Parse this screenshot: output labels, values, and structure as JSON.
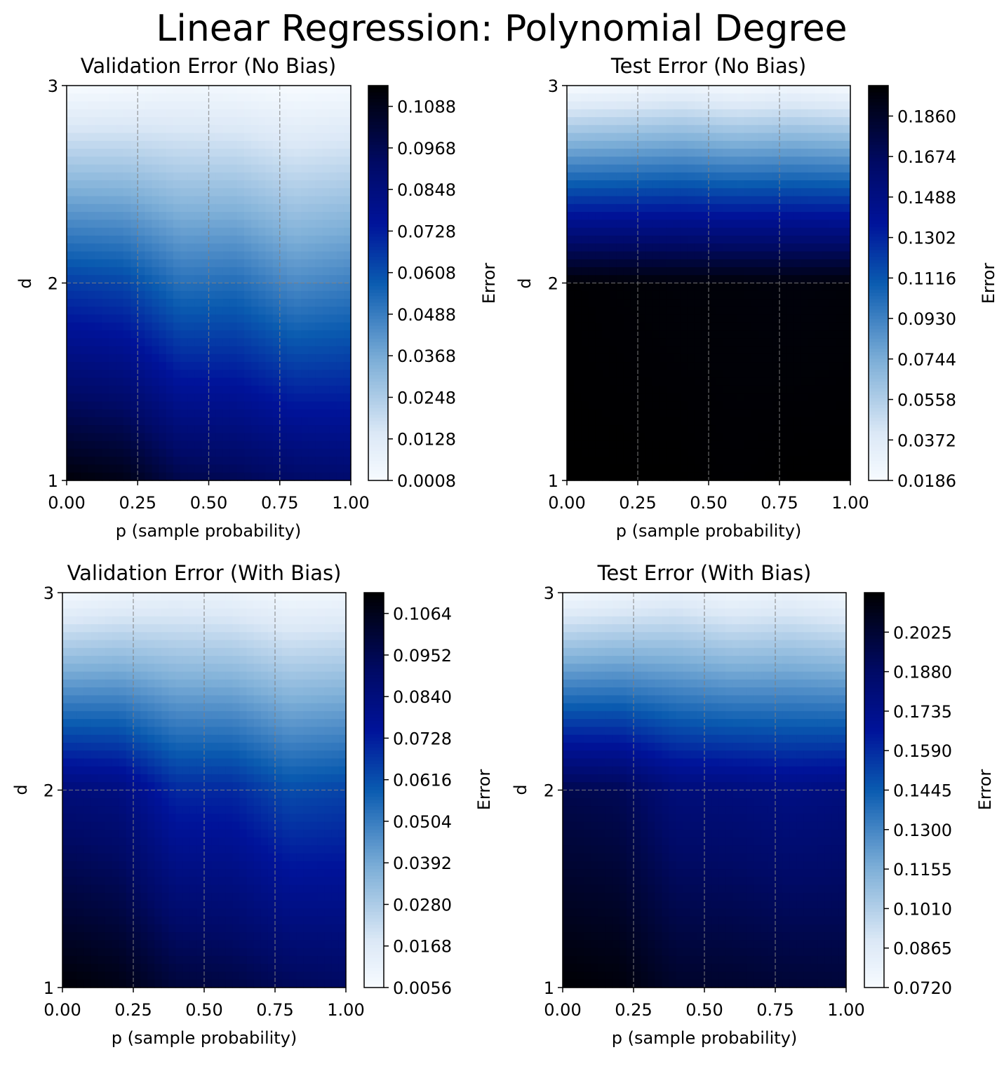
{
  "figure": {
    "suptitle": "Linear Regression: Polynomial Degree"
  },
  "colormap": {
    "name": "Blues-to-black",
    "stops": [
      {
        "t": 0.0,
        "color": "#f7fbff"
      },
      {
        "t": 0.12,
        "color": "#dbe8f6"
      },
      {
        "t": 0.3,
        "color": "#7fb0d8"
      },
      {
        "t": 0.5,
        "color": "#0a5bb0"
      },
      {
        "t": 0.65,
        "color": "#00139a"
      },
      {
        "t": 0.8,
        "color": "#000a66"
      },
      {
        "t": 1.0,
        "color": "#000000"
      }
    ]
  },
  "chart_data": [
    {
      "type": "heatmap",
      "title": "Validation Error (No Bias)",
      "xlabel": "p (sample probability)",
      "ylabel": "d",
      "xlim": [
        0,
        1
      ],
      "ylim": [
        1,
        3
      ],
      "x_ticks": [
        "0.00",
        "0.25",
        "0.50",
        "0.75",
        "1.00"
      ],
      "y_ticks": [
        "1",
        "2",
        "3"
      ],
      "x_gridlines": [
        0.25,
        0.5,
        0.75
      ],
      "y_gridlines": [
        2
      ],
      "colorbar_label": "Error",
      "vmin": 0.0008,
      "vmax": 0.1148,
      "colorbar_ticks": [
        "0.0008",
        "0.0128",
        "0.0248",
        "0.0368",
        "0.0488",
        "0.0608",
        "0.0728",
        "0.0848",
        "0.0968",
        "0.1088"
      ],
      "x": [
        0.0,
        0.2,
        0.4,
        0.6,
        0.8,
        1.0
      ],
      "y": [
        1,
        2,
        3
      ],
      "z": [
        [
          0.113,
          0.11,
          0.098,
          0.096,
          0.092,
          0.09
        ],
        [
          0.065,
          0.063,
          0.052,
          0.053,
          0.045,
          0.048
        ],
        [
          0.001,
          0.002,
          0.004,
          0.003,
          0.001,
          0.002
        ]
      ]
    },
    {
      "type": "heatmap",
      "title": "Test Error (No Bias)",
      "xlabel": "p (sample probability)",
      "ylabel": "d",
      "xlim": [
        0,
        1
      ],
      "ylim": [
        1,
        3
      ],
      "x_ticks": [
        "0.00",
        "0.25",
        "0.50",
        "0.75",
        "1.00"
      ],
      "y_ticks": [
        "1",
        "2",
        "3"
      ],
      "x_gridlines": [
        0.25,
        0.5,
        0.75
      ],
      "y_gridlines": [
        2
      ],
      "colorbar_label": "Error",
      "vmin": 0.0186,
      "vmax": 0.2,
      "colorbar_ticks": [
        "0.0186",
        "0.0372",
        "0.0558",
        "0.0744",
        "0.0930",
        "0.1116",
        "0.1302",
        "0.1488",
        "0.1674",
        "0.1860"
      ],
      "x": [
        0.0,
        0.2,
        0.4,
        0.6,
        0.8,
        1.0
      ],
      "y": [
        1,
        2,
        3
      ],
      "z": [
        [
          0.2,
          0.2,
          0.2,
          0.199,
          0.2,
          0.2
        ],
        [
          0.199,
          0.198,
          0.197,
          0.197,
          0.196,
          0.197
        ],
        [
          0.019,
          0.022,
          0.026,
          0.021,
          0.024,
          0.02
        ]
      ]
    },
    {
      "type": "heatmap",
      "title": "Validation Error (With Bias)",
      "xlabel": "p (sample probability)",
      "ylabel": "d",
      "xlim": [
        0,
        1
      ],
      "ylim": [
        1,
        3
      ],
      "x_ticks": [
        "0.00",
        "0.25",
        "0.50",
        "0.75",
        "1.00"
      ],
      "y_ticks": [
        "1",
        "2",
        "3"
      ],
      "x_gridlines": [
        0.25,
        0.5,
        0.75
      ],
      "y_gridlines": [
        2
      ],
      "colorbar_label": "Error",
      "vmin": 0.0056,
      "vmax": 0.112,
      "colorbar_ticks": [
        "0.0056",
        "0.0168",
        "0.0280",
        "0.0392",
        "0.0504",
        "0.0616",
        "0.0728",
        "0.0840",
        "0.0952",
        "0.1064"
      ],
      "x": [
        0.0,
        0.2,
        0.4,
        0.6,
        0.8,
        1.0
      ],
      "y": [
        1,
        2,
        3
      ],
      "z": [
        [
          0.111,
          0.108,
          0.1,
          0.098,
          0.094,
          0.092
        ],
        [
          0.085,
          0.083,
          0.07,
          0.07,
          0.062,
          0.064
        ],
        [
          0.007,
          0.01,
          0.012,
          0.011,
          0.008,
          0.009
        ]
      ]
    },
    {
      "type": "heatmap",
      "title": "Test Error (With Bias)",
      "xlabel": "p (sample probability)",
      "ylabel": "d",
      "xlim": [
        0,
        1
      ],
      "ylim": [
        1,
        3
      ],
      "x_ticks": [
        "0.00",
        "0.25",
        "0.50",
        "0.75",
        "1.00"
      ],
      "y_ticks": [
        "1",
        "2",
        "3"
      ],
      "x_gridlines": [
        0.25,
        0.5,
        0.75
      ],
      "y_gridlines": [
        2
      ],
      "colorbar_label": "Error",
      "vmin": 0.072,
      "vmax": 0.217,
      "colorbar_ticks": [
        "0.0720",
        "0.0865",
        "0.1010",
        "0.1155",
        "0.1300",
        "0.1445",
        "0.1590",
        "0.1735",
        "0.1880",
        "0.2025"
      ],
      "x": [
        0.0,
        0.2,
        0.4,
        0.6,
        0.8,
        1.0
      ],
      "y": [
        1,
        2,
        3
      ],
      "z": [
        [
          0.216,
          0.214,
          0.205,
          0.204,
          0.202,
          0.201
        ],
        [
          0.195,
          0.193,
          0.18,
          0.179,
          0.176,
          0.178
        ],
        [
          0.074,
          0.078,
          0.082,
          0.077,
          0.08,
          0.075
        ]
      ]
    }
  ]
}
